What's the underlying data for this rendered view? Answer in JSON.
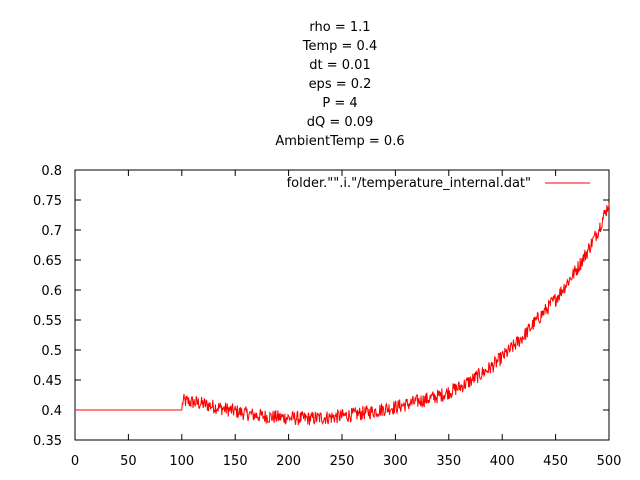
{
  "chart_data": {
    "type": "line",
    "title_lines": [
      "rho = 1.1",
      "Temp = 0.4",
      "dt = 0.01",
      "eps = 0.2",
      "P = 4",
      "dQ = 0.09",
      "AmbientTemp = 0.6"
    ],
    "xlabel": "",
    "ylabel": "",
    "xlim": [
      0,
      500
    ],
    "ylim": [
      0.35,
      0.8
    ],
    "x_ticks": [
      "0",
      "50",
      "100",
      "150",
      "200",
      "250",
      "300",
      "350",
      "400",
      "450",
      "500"
    ],
    "y_ticks": [
      "0.35",
      "0.4",
      "0.45",
      "0.5",
      "0.55",
      "0.6",
      "0.65",
      "0.7",
      "0.75",
      "0.8"
    ],
    "grid": false,
    "legend_position": "top-right",
    "series": [
      {
        "name": "folder.\"\".i.\"/temperature_internal.dat\"",
        "color": "#ff0000",
        "x": [
          0,
          100,
          101,
          110,
          120,
          130,
          140,
          150,
          160,
          170,
          180,
          190,
          200,
          210,
          220,
          230,
          240,
          250,
          260,
          270,
          280,
          290,
          300,
          310,
          320,
          330,
          340,
          350,
          360,
          370,
          380,
          390,
          400,
          410,
          420,
          430,
          440,
          450,
          460,
          470,
          480,
          490,
          500
        ],
        "y": [
          0.4,
          0.4,
          0.415,
          0.413,
          0.41,
          0.406,
          0.402,
          0.398,
          0.394,
          0.391,
          0.389,
          0.388,
          0.387,
          0.386,
          0.386,
          0.387,
          0.388,
          0.39,
          0.392,
          0.395,
          0.398,
          0.402,
          0.405,
          0.409,
          0.414,
          0.418,
          0.423,
          0.43,
          0.438,
          0.448,
          0.46,
          0.472,
          0.488,
          0.505,
          0.523,
          0.545,
          0.565,
          0.585,
          0.61,
          0.635,
          0.665,
          0.7,
          0.745
        ]
      }
    ]
  }
}
